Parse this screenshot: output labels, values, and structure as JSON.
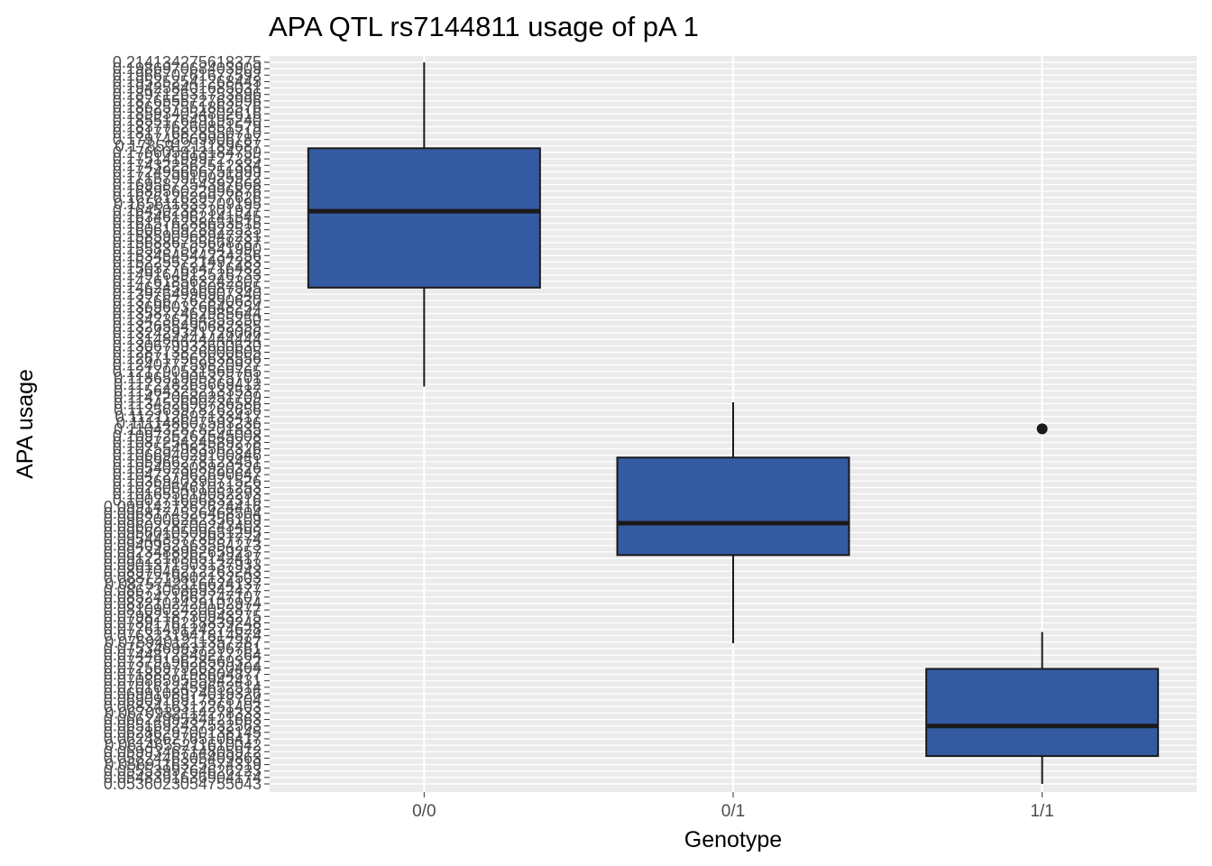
{
  "chart_data": {
    "type": "box",
    "title": "APA QTL rs7144811 usage of pA 1",
    "xlabel": "Genotype",
    "ylabel": "APA usage",
    "categories": [
      "0/0",
      "0/1",
      "1/1"
    ],
    "boxes": [
      {
        "category": "0/0",
        "whisker_low": 0.142,
        "q1": 0.164,
        "median": 0.181,
        "q3": 0.195,
        "whisker_high": 0.2141,
        "outliers": []
      },
      {
        "category": "0/1",
        "whisker_low": 0.0849,
        "q1": 0.1045,
        "median": 0.1116,
        "q3": 0.1262,
        "whisker_high": 0.1385,
        "outliers": []
      },
      {
        "category": "1/1",
        "whisker_low": 0.0536,
        "q1": 0.0598,
        "median": 0.0665,
        "q3": 0.0792,
        "whisker_high": 0.0874,
        "outliers": [
          0.1326
        ]
      }
    ],
    "y_tick_labels": [
      "0.214134275618375",
      "0.198697068403909",
      "0.196670761677592",
      "0.195252541268443",
      "0.194258401685031",
      "0.189712631753896",
      "0.187655572763996",
      "0.186257551862576",
      "0.185934054802616",
      "0.185517649195240",
      "0.183776260851579",
      "0.181776828550710",
      "0.179748669906787",
      "0.178591211189687",
      "0.176605913184759",
      "0.175141999727285",
      "0.174322562512334",
      "0.172495666751999",
      "0.171579910925922",
      "0.169587254397668",
      "0.168956022996876",
      "0.167612629977626",
      "0.165611833709195",
      "0.164502387301927",
      "0.163461962141545",
      "0.161576288653515",
      "0.160610928922525",
      "0.158590968947231",
      "0.156886755668787",
      "0.155837567841990",
      "0.153454544234256",
      "0.152255721497283",
      "0.150377634716482",
      "0.149164912526733",
      "0.147618563242307",
      "0.146245916087565",
      "0.139764996907340",
      "0.137667762890630",
      "0.136960376648254",
      "0.135877462985644",
      "0.134236264555250",
      "0.132655490682355",
      "0.132429341728066",
      "0.131484444444444",
      "0.130679933600630",
      "0.128773826000605",
      "0.126717562638556",
      "0.124077759820927",
      "0.121790531569765",
      "0.118651905375701",
      "0.117228265669412",
      "0.115643252133537",
      "0.114720680251709",
      "0.113452690736586",
      "0.112563978262656",
      "0.112112697133417",
      "0.111148607593236",
      "0.110432878201835",
      "0.109725262545008",
      "0.108725424589278",
      "0.107554983562326",
      "0.106694029100846",
      "0.105966278123451",
      "0.105402308920326",
      "0.104727962690647",
      "0.103694039071526",
      "0.102506461031253",
      "0.101655019052293",
      "0.100271606832316",
      "0.0991427362624416",
      "0.0968174526468504",
      "0.0962006282356109",
      "0.0960228700243403",
      "0.0956010509651295",
      "0.0954435778937774",
      "0.0940952363554273",
      "0.0923488962659257",
      "0.0912218365142417",
      "0.0901371503137933",
      "0.0897046212263243",
      "0.0887219802132503",
      "0.0875742116624137",
      "0.0867300869342477",
      "0.0852471662747107",
      "0.0832102429102974",
      "0.0810902420052877",
      "0.0798218730943275",
      "0.0789176218839248",
      "0.0776149124274628",
      "0.0763231941814874",
      "0.0759401211357287",
      "0.0753469937296761",
      "0.0744872849217264",
      "0.0737919628569322",
      "0.0725697926320404",
      "0.0718837198604877",
      "0.0708659555942431",
      "0.0701612459652514",
      "0.0699108974019326",
      "0.0690916917878704",
      "0.0683416312261403",
      "0.0670932114278333",
      "0.0662499534121663",
      "0.0651692437532563",
      "0.0628629700138145",
      "0.0624862765106417",
      "0.0614655211610042",
      "0.0599346714805912",
      "0.0582446305409863",
      "0.0569116325574319",
      "0.0555399764626223",
      "0.0548391636904174",
      "0.0536023054755043"
    ],
    "y_range": [
      0.0536023054755043,
      0.214134275618375
    ],
    "box_fill": "#345ba1",
    "box_stroke": "#1a1a1a",
    "panel_bg": "#ebebeb",
    "grid": true,
    "legend": "none"
  }
}
